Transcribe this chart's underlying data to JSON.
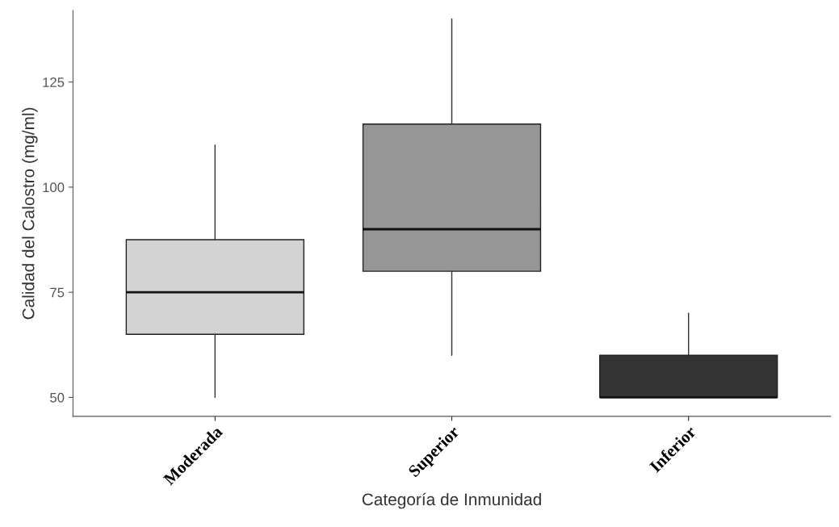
{
  "chart_data": {
    "type": "box",
    "xlabel": "Categoría de Inmunidad",
    "ylabel": "Calidad del Calostro (mg/ml)",
    "categories": [
      "Moderada",
      "Superior",
      "Inferior"
    ],
    "colors": [
      "#d3d3d3",
      "#969696",
      "#333333"
    ],
    "boxes": [
      {
        "low": 50,
        "q1": 65,
        "median": 75,
        "q3": 87.5,
        "high": 110
      },
      {
        "low": 60,
        "q1": 80,
        "median": 90,
        "q3": 115,
        "high": 140
      },
      {
        "low": 50,
        "q1": 50,
        "median": 50,
        "q3": 60,
        "high": 70
      }
    ],
    "ylim": [
      45.5,
      142
    ],
    "yticks": [
      50,
      75,
      100,
      125
    ],
    "grid": false,
    "legend": false
  }
}
